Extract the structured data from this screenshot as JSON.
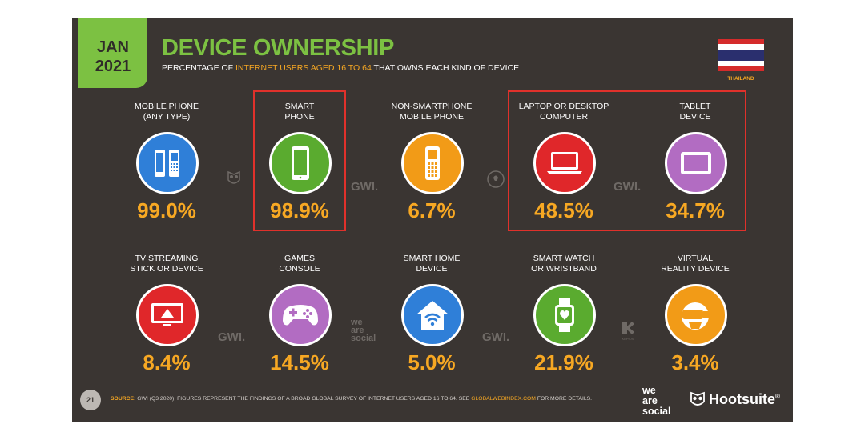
{
  "header": {
    "month": "JAN",
    "year": "2021",
    "title": "DEVICE OWNERSHIP",
    "subtitle_pre": "PERCENTAGE OF ",
    "subtitle_highlight": "INTERNET USERS AGED 16 TO 64",
    "subtitle_post": " THAT OWNS EACH KIND OF DEVICE",
    "country": "THAILAND"
  },
  "chart_data": {
    "type": "table",
    "title": "DEVICE OWNERSHIP",
    "subtitle": "PERCENTAGE OF INTERNET USERS AGED 16 TO 64 THAT OWNS EACH KIND OF DEVICE",
    "unit": "%",
    "items": [
      {
        "label": "MOBILE PHONE\n(ANY TYPE)",
        "value": 99.0,
        "display": "99.0%",
        "icon": "mobile-phones-icon",
        "color": "#2f7fd8"
      },
      {
        "label": "SMART\nPHONE",
        "value": 98.9,
        "display": "98.9%",
        "icon": "smartphone-icon",
        "color": "#5aab2f",
        "highlighted": true
      },
      {
        "label": "NON-SMARTPHONE\nMOBILE PHONE",
        "value": 6.7,
        "display": "6.7%",
        "icon": "feature-phone-icon",
        "color": "#f29b17"
      },
      {
        "label": "LAPTOP OR DESKTOP\nCOMPUTER",
        "value": 48.5,
        "display": "48.5%",
        "icon": "laptop-icon",
        "color": "#e0272a",
        "highlighted": true
      },
      {
        "label": "TABLET\nDEVICE",
        "value": 34.7,
        "display": "34.7%",
        "icon": "tablet-icon",
        "color": "#b26cc2",
        "highlighted": true
      },
      {
        "label": "TV STREAMING\nSTICK OR DEVICE",
        "value": 8.4,
        "display": "8.4%",
        "icon": "tv-streaming-icon",
        "color": "#e0272a"
      },
      {
        "label": "GAMES\nCONSOLE",
        "value": 14.5,
        "display": "14.5%",
        "icon": "game-controller-icon",
        "color": "#b26cc2"
      },
      {
        "label": "SMART HOME\nDEVICE",
        "value": 5.0,
        "display": "5.0%",
        "icon": "smart-home-icon",
        "color": "#2f7fd8"
      },
      {
        "label": "SMART WATCH\nOR WRISTBAND",
        "value": 21.9,
        "display": "21.9%",
        "icon": "smartwatch-icon",
        "color": "#5aab2f"
      },
      {
        "label": "VIRTUAL\nREALITY DEVICE",
        "value": 3.4,
        "display": "3.4%",
        "icon": "vr-headset-icon",
        "color": "#f29b17"
      }
    ]
  },
  "watermarks": {
    "gwi": "GWI.",
    "we_are_social": "we\nare\nsocial",
    "kepios": "KEPIOS"
  },
  "footer": {
    "page_number": "21",
    "source_key": "SOURCE:",
    "source_text": " GWI (Q3 2020). FIGURES REPRESENT THE FINDINGS OF A BROAD GLOBAL SURVEY OF INTERNET USERS AGED 16 TO 64. SEE ",
    "source_link": "GLOBALWEBINDEX.COM",
    "source_end": " FOR MORE DETAILS.",
    "brand1_l1": "we",
    "brand1_l2": "are",
    "brand1_l3": "social",
    "brand2": "Hootsuite",
    "brand2_mark": "®"
  },
  "colors": {
    "background": "#3a3532",
    "accent_green": "#7cc142",
    "accent_orange": "#f7a823",
    "highlight_red": "#e0312b"
  }
}
